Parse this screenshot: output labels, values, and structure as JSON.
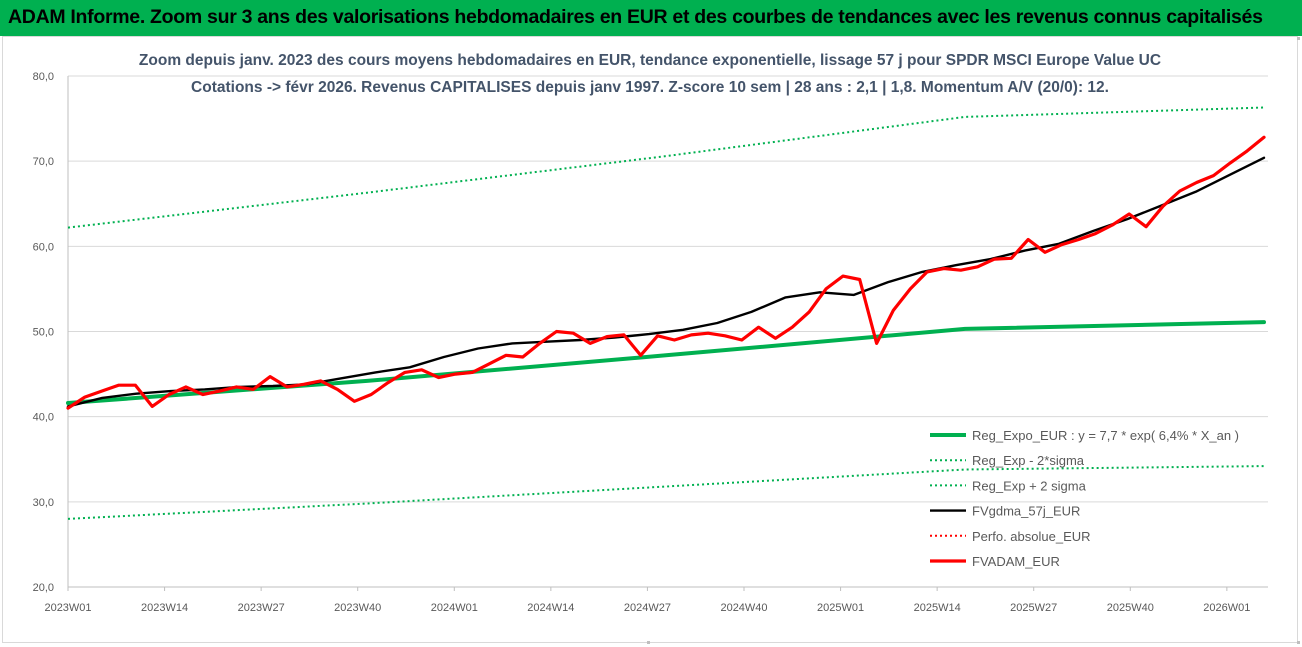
{
  "banner": {
    "title": "ADAM Informe. Zoom sur 3 ans des valorisations hebdomadaires en EUR et des courbes de tendances avec les revenus connus capitalisés",
    "color": "#00b050"
  },
  "chart_data": {
    "type": "line",
    "subtitle_line1": "Zoom depuis janv. 2023 des cours moyens hebdomadaires en EUR, tendance exponentielle, lissage 57 j pour SPDR MSCI Europe Value UC",
    "subtitle_line2": "Cotations -> févr 2026. Revenus CAPITALISES depuis janv 1997. Z-score 10 sem | 28 ans : 2,1 | 1,8. Momentum A/V (20/0): 12.",
    "ylim": [
      20,
      80
    ],
    "y_ticks": [
      "20,0",
      "30,0",
      "40,0",
      "50,0",
      "60,0",
      "70,0",
      "80,0"
    ],
    "x_ticks": [
      "2023W01",
      "2023W14",
      "2023W27",
      "2023W40",
      "2024W01",
      "2024W14",
      "2024W27",
      "2024W40",
      "2025W01",
      "2025W14",
      "2025W27",
      "2025W40",
      "2026W01"
    ],
    "grid": true,
    "legend_position": "bottom-right",
    "series": [
      {
        "name": "Reg_Expo_EUR : y = 7,7 * exp( 6,4% *  X_an )",
        "color": "#00b050",
        "style": "solid-thick",
        "values": [
          41.6,
          44.2,
          47.2,
          50.3,
          51.1
        ]
      },
      {
        "name": "Reg_Exp - 2*sigma",
        "color": "#00b050",
        "style": "dotted",
        "values": [
          28.0,
          29.8,
          31.8,
          33.8,
          34.2
        ]
      },
      {
        "name": "Reg_Exp + 2 sigma",
        "color": "#00b050",
        "style": "dotted",
        "values": [
          62.2,
          66.3,
          70.6,
          75.2,
          76.3
        ]
      },
      {
        "name": "FVgdma_57j_EUR",
        "color": "#000000",
        "style": "solid",
        "values": [
          41.2,
          42.2,
          42.7,
          43.0,
          43.2,
          43.5,
          43.6,
          43.8,
          44.5,
          45.2,
          45.8,
          47.0,
          48.0,
          48.6,
          48.8,
          49.0,
          49.3,
          49.7,
          50.2,
          51.0,
          52.3,
          54.0,
          54.6,
          54.3,
          55.8,
          57.0,
          57.8,
          58.5,
          59.5,
          60.3,
          61.8,
          63.2,
          64.8,
          66.4,
          68.4,
          70.4
        ]
      },
      {
        "name": "Perfo. absolue_EUR",
        "color": "#ff0000",
        "style": "dotted",
        "values": []
      },
      {
        "name": "FVADAM_EUR",
        "color": "#ff0000",
        "style": "solid-thick",
        "values": [
          41.0,
          42.3,
          43.0,
          43.7,
          43.7,
          41.2,
          42.6,
          43.5,
          42.6,
          43.0,
          43.5,
          43.2,
          44.7,
          43.5,
          43.8,
          44.2,
          43.2,
          41.8,
          42.6,
          44.0,
          45.2,
          45.5,
          44.6,
          45.0,
          45.2,
          46.2,
          47.2,
          47.0,
          48.6,
          50.0,
          49.8,
          48.6,
          49.4,
          49.6,
          47.2,
          49.5,
          49.0,
          49.6,
          49.8,
          49.5,
          49.0,
          50.5,
          49.2,
          50.5,
          52.3,
          55.0,
          56.5,
          56.1,
          48.6,
          52.5,
          55.0,
          57.0,
          57.4,
          57.2,
          57.6,
          58.5,
          58.6,
          60.8,
          59.3,
          60.2,
          60.8,
          61.5,
          62.5,
          63.8,
          62.3,
          64.7,
          66.5,
          67.5,
          68.3,
          69.8,
          71.2,
          72.8
        ]
      }
    ]
  }
}
